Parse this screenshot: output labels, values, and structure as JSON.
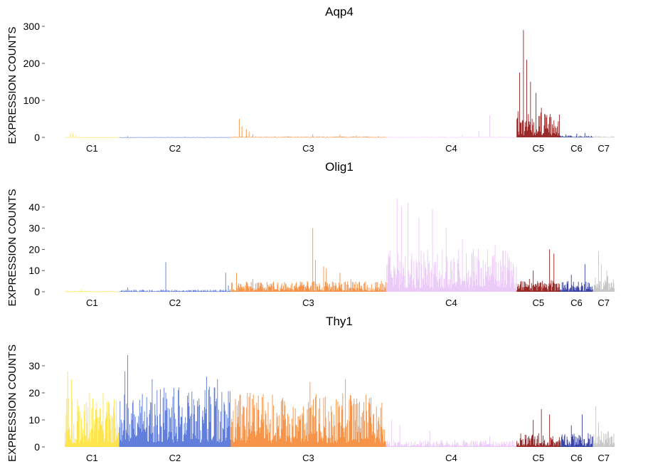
{
  "chart_data": [
    {
      "type": "bar",
      "title": "Aqp4",
      "ylabel": "EXPRESSION COUNTS",
      "xlabel": "",
      "yticks": [
        0,
        100,
        200,
        300
      ],
      "ylim": [
        0,
        300
      ],
      "clusters": [
        {
          "name": "C1",
          "color": "#FFE033",
          "start": 0,
          "end": 100,
          "base": 0.3,
          "spikes": [
            [
              10,
              12
            ],
            [
              14,
              12
            ],
            [
              20,
              4
            ]
          ]
        },
        {
          "name": "C2",
          "color": "#4A6BD6",
          "start": 100,
          "end": 305,
          "base": 0.4,
          "spikes": [
            [
              15,
              3
            ],
            [
              120,
              2
            ]
          ]
        },
        {
          "name": "C3",
          "color": "#F5842F",
          "start": 305,
          "end": 590,
          "base": 1.2,
          "spikes": [
            [
              15,
              50
            ],
            [
              20,
              30
            ],
            [
              28,
              22
            ],
            [
              33,
              15
            ],
            [
              40,
              8
            ],
            [
              150,
              8
            ],
            [
              200,
              7
            ],
            [
              230,
              5
            ]
          ]
        },
        {
          "name": "C4",
          "color": "#E8C3F7",
          "start": 590,
          "end": 830,
          "base": 0.8,
          "spikes": [
            [
              190,
              60
            ],
            [
              170,
              18
            ],
            [
              140,
              6
            ]
          ]
        },
        {
          "name": "C5",
          "color": "#8B0A0A",
          "start": 830,
          "end": 910,
          "base": 35,
          "spikes": [
            [
              5,
              175
            ],
            [
              12,
              290
            ],
            [
              18,
              210
            ],
            [
              25,
              150
            ],
            [
              35,
              120
            ],
            [
              45,
              80
            ],
            [
              55,
              60
            ],
            [
              65,
              35
            ],
            [
              72,
              25
            ]
          ]
        },
        {
          "name": "C6",
          "color": "#1F2A9A",
          "start": 910,
          "end": 970,
          "base": 2.5,
          "spikes": [
            [
              10,
              8
            ],
            [
              30,
              10
            ],
            [
              45,
              12
            ]
          ]
        },
        {
          "name": "C7",
          "color": "#BEBEBE",
          "start": 970,
          "end": 1010,
          "base": 1.5,
          "spikes": [
            [
              5,
              4
            ]
          ]
        }
      ]
    },
    {
      "type": "bar",
      "title": "Olig1",
      "ylabel": "EXPRESSION COUNTS",
      "xlabel": "",
      "yticks": [
        0,
        10,
        20,
        30,
        40
      ],
      "ylim": [
        0,
        45
      ],
      "clusters": [
        {
          "name": "C1",
          "color": "#FFE033",
          "start": 0,
          "end": 100,
          "base": 0.2,
          "spikes": [
            [
              30,
              1
            ]
          ]
        },
        {
          "name": "C2",
          "color": "#4A6BD6",
          "start": 100,
          "end": 305,
          "base": 0.5,
          "spikes": [
            [
              15,
              2
            ],
            [
              85,
              14
            ],
            [
              200,
              3
            ],
            [
              195,
              9
            ]
          ]
        },
        {
          "name": "C3",
          "color": "#F5842F",
          "start": 305,
          "end": 590,
          "base": 2.5,
          "spikes": [
            [
              10,
              9
            ],
            [
              40,
              6
            ],
            [
              150,
              30
            ],
            [
              155,
              15
            ],
            [
              170,
              12
            ],
            [
              175,
              11
            ],
            [
              200,
              9
            ],
            [
              220,
              6
            ]
          ]
        },
        {
          "name": "C4",
          "color": "#E8C3F7",
          "start": 590,
          "end": 830,
          "base": 10,
          "spikes": [
            [
              20,
              44
            ],
            [
              28,
              40
            ],
            [
              40,
              42
            ],
            [
              60,
              35
            ],
            [
              85,
              39
            ],
            [
              110,
              30
            ],
            [
              140,
              25
            ],
            [
              200,
              22
            ],
            [
              225,
              15
            ]
          ]
        },
        {
          "name": "C5",
          "color": "#8B0A0A",
          "start": 830,
          "end": 910,
          "base": 3,
          "spikes": [
            [
              30,
              10
            ],
            [
              60,
              20
            ],
            [
              68,
              18
            ]
          ]
        },
        {
          "name": "C6",
          "color": "#1F2A9A",
          "start": 910,
          "end": 970,
          "base": 2.5,
          "spikes": [
            [
              20,
              8
            ],
            [
              45,
              13
            ]
          ]
        },
        {
          "name": "C7",
          "color": "#BEBEBE",
          "start": 970,
          "end": 1010,
          "base": 4,
          "spikes": [
            [
              10,
              19
            ],
            [
              15,
              13
            ],
            [
              25,
              10
            ]
          ]
        }
      ]
    },
    {
      "type": "bar",
      "title": "Thy1",
      "ylabel": "EXPRESSION COUNTS",
      "xlabel": "",
      "yticks": [
        0,
        10,
        20,
        30
      ],
      "ylim": [
        0,
        35
      ],
      "clusters": [
        {
          "name": "C1",
          "color": "#FFE033",
          "start": 0,
          "end": 100,
          "base": 9,
          "spikes": [
            [
              5,
              28
            ],
            [
              12,
              25
            ],
            [
              45,
              20
            ],
            [
              70,
              20
            ]
          ]
        },
        {
          "name": "C2",
          "color": "#4A6BD6",
          "start": 100,
          "end": 305,
          "base": 11,
          "spikes": [
            [
              15,
              34
            ],
            [
              10,
              28
            ],
            [
              60,
              25
            ],
            [
              160,
              26
            ],
            [
              180,
              25
            ]
          ]
        },
        {
          "name": "C3",
          "color": "#F5842F",
          "start": 305,
          "end": 590,
          "base": 10,
          "spikes": [
            [
              30,
              20
            ],
            [
              145,
              24
            ],
            [
              210,
              25
            ]
          ]
        },
        {
          "name": "C4",
          "color": "#E8C3F7",
          "start": 590,
          "end": 830,
          "base": 1.2,
          "spikes": [
            [
              10,
              10
            ],
            [
              25,
              8
            ],
            [
              80,
              6
            ],
            [
              190,
              4
            ]
          ]
        },
        {
          "name": "C5",
          "color": "#8B0A0A",
          "start": 830,
          "end": 910,
          "base": 2.5,
          "spikes": [
            [
              30,
              10
            ],
            [
              45,
              14
            ],
            [
              60,
              12
            ]
          ]
        },
        {
          "name": "C6",
          "color": "#1F2A9A",
          "start": 910,
          "end": 970,
          "base": 2.5,
          "spikes": [
            [
              20,
              8
            ],
            [
              40,
              12
            ]
          ]
        },
        {
          "name": "C7",
          "color": "#BEBEBE",
          "start": 970,
          "end": 1010,
          "base": 3,
          "spikes": [
            [
              5,
              15
            ],
            [
              10,
              9
            ]
          ]
        }
      ]
    }
  ]
}
